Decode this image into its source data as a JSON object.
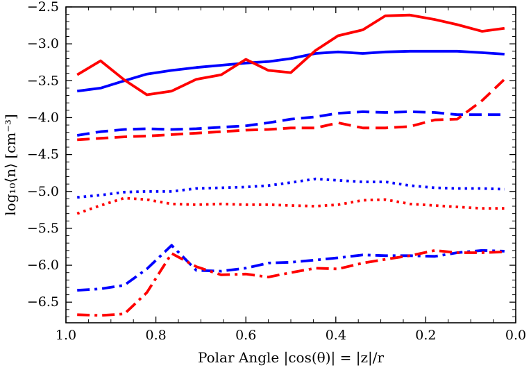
{
  "chart_data": {
    "type": "line",
    "xlabel": "Polar Angle |cos(θ)| = |z|/r",
    "ylabel": "log₁₀⟨n⟩  [cm⁻³]",
    "xlim": [
      1.0,
      0.0
    ],
    "ylim": [
      -6.78,
      -2.5
    ],
    "x_ticks": [
      {
        "value": 1.0,
        "label": "1.0"
      },
      {
        "value": 0.8,
        "label": "0.8"
      },
      {
        "value": 0.6,
        "label": "0.6"
      },
      {
        "value": 0.4,
        "label": "0.4"
      },
      {
        "value": 0.2,
        "label": "0.2"
      },
      {
        "value": 0.0,
        "label": "0.0"
      }
    ],
    "y_ticks": [
      {
        "value": -2.5,
        "label": "−2.5"
      },
      {
        "value": -3.0,
        "label": "−3.0"
      },
      {
        "value": -3.5,
        "label": "−3.5"
      },
      {
        "value": -4.0,
        "label": "−4.0"
      },
      {
        "value": -4.5,
        "label": "−4.5"
      },
      {
        "value": -5.0,
        "label": "−5.0"
      },
      {
        "value": -5.5,
        "label": "−5.5"
      },
      {
        "value": -6.0,
        "label": "−6.0"
      },
      {
        "value": -6.5,
        "label": "−6.5"
      }
    ],
    "grid": false,
    "series": [
      {
        "color": "#0000ff",
        "style": "solid",
        "x": [
          0.975,
          0.923,
          0.87,
          0.82,
          0.765,
          0.71,
          0.655,
          0.6,
          0.55,
          0.5,
          0.445,
          0.395,
          0.34,
          0.29,
          0.235,
          0.18,
          0.13,
          0.075,
          0.025
        ],
        "y": [
          -3.64,
          -3.6,
          -3.5,
          -3.41,
          -3.36,
          -3.32,
          -3.29,
          -3.26,
          -3.24,
          -3.2,
          -3.13,
          -3.11,
          -3.13,
          -3.11,
          -3.1,
          -3.1,
          -3.1,
          -3.12,
          -3.14
        ]
      },
      {
        "color": "#ff0000",
        "style": "solid",
        "x": [
          0.975,
          0.923,
          0.87,
          0.82,
          0.765,
          0.71,
          0.655,
          0.6,
          0.55,
          0.5,
          0.445,
          0.395,
          0.34,
          0.29,
          0.235,
          0.18,
          0.13,
          0.075,
          0.025
        ],
        "y": [
          -3.42,
          -3.23,
          -3.49,
          -3.69,
          -3.64,
          -3.48,
          -3.42,
          -3.21,
          -3.36,
          -3.39,
          -3.09,
          -2.89,
          -2.81,
          -2.62,
          -2.61,
          -2.67,
          -2.74,
          -2.83,
          -2.79
        ]
      },
      {
        "color": "#0000ff",
        "style": "dashed",
        "x": [
          0.975,
          0.923,
          0.87,
          0.82,
          0.765,
          0.71,
          0.655,
          0.6,
          0.55,
          0.5,
          0.445,
          0.395,
          0.34,
          0.29,
          0.235,
          0.18,
          0.13,
          0.075,
          0.025
        ],
        "y": [
          -4.24,
          -4.19,
          -4.16,
          -4.15,
          -4.16,
          -4.15,
          -4.13,
          -4.11,
          -4.07,
          -4.02,
          -3.99,
          -3.94,
          -3.92,
          -3.93,
          -3.92,
          -3.93,
          -3.96,
          -3.96,
          -3.96
        ]
      },
      {
        "color": "#ff0000",
        "style": "dashed",
        "x": [
          0.975,
          0.923,
          0.87,
          0.82,
          0.765,
          0.71,
          0.655,
          0.6,
          0.55,
          0.5,
          0.445,
          0.395,
          0.34,
          0.29,
          0.235,
          0.18,
          0.13,
          0.075,
          0.025
        ],
        "y": [
          -4.3,
          -4.28,
          -4.26,
          -4.25,
          -4.23,
          -4.21,
          -4.19,
          -4.17,
          -4.16,
          -4.14,
          -4.14,
          -4.07,
          -4.14,
          -4.14,
          -4.12,
          -4.03,
          -4.02,
          -3.77,
          -3.48
        ]
      },
      {
        "color": "#0000ff",
        "style": "dotted",
        "x": [
          0.975,
          0.923,
          0.87,
          0.82,
          0.765,
          0.71,
          0.655,
          0.6,
          0.55,
          0.5,
          0.445,
          0.395,
          0.34,
          0.29,
          0.235,
          0.18,
          0.13,
          0.075,
          0.025
        ],
        "y": [
          -5.08,
          -5.05,
          -5.01,
          -5.0,
          -5.0,
          -4.96,
          -4.95,
          -4.94,
          -4.92,
          -4.88,
          -4.83,
          -4.85,
          -4.87,
          -4.87,
          -4.92,
          -4.95,
          -4.96,
          -4.96,
          -4.97
        ]
      },
      {
        "color": "#ff0000",
        "style": "dotted",
        "x": [
          0.975,
          0.923,
          0.87,
          0.82,
          0.765,
          0.71,
          0.655,
          0.6,
          0.55,
          0.5,
          0.445,
          0.395,
          0.34,
          0.29,
          0.235,
          0.18,
          0.13,
          0.075,
          0.025
        ],
        "y": [
          -5.3,
          -5.19,
          -5.09,
          -5.11,
          -5.17,
          -5.18,
          -5.17,
          -5.18,
          -5.18,
          -5.19,
          -5.2,
          -5.18,
          -5.12,
          -5.11,
          -5.17,
          -5.19,
          -5.21,
          -5.23,
          -5.23
        ]
      },
      {
        "color": "#0000ff",
        "style": "dashdot",
        "x": [
          0.975,
          0.923,
          0.87,
          0.82,
          0.765,
          0.71,
          0.655,
          0.6,
          0.55,
          0.5,
          0.445,
          0.395,
          0.34,
          0.29,
          0.235,
          0.18,
          0.13,
          0.075,
          0.025
        ],
        "y": [
          -6.34,
          -6.32,
          -6.27,
          -6.05,
          -5.73,
          -6.07,
          -6.08,
          -6.04,
          -5.97,
          -5.96,
          -5.93,
          -5.9,
          -5.86,
          -5.87,
          -5.87,
          -5.88,
          -5.83,
          -5.8,
          -5.81
        ]
      },
      {
        "color": "#ff0000",
        "style": "dashdot",
        "x": [
          0.975,
          0.923,
          0.87,
          0.82,
          0.765,
          0.71,
          0.655,
          0.6,
          0.55,
          0.5,
          0.445,
          0.395,
          0.34,
          0.29,
          0.235,
          0.18,
          0.13,
          0.075,
          0.025
        ],
        "y": [
          -6.67,
          -6.68,
          -6.66,
          -6.37,
          -5.84,
          -6.02,
          -6.13,
          -6.12,
          -6.16,
          -6.1,
          -6.04,
          -6.05,
          -5.97,
          -5.92,
          -5.87,
          -5.8,
          -5.83,
          -5.83,
          -5.82
        ]
      }
    ]
  }
}
